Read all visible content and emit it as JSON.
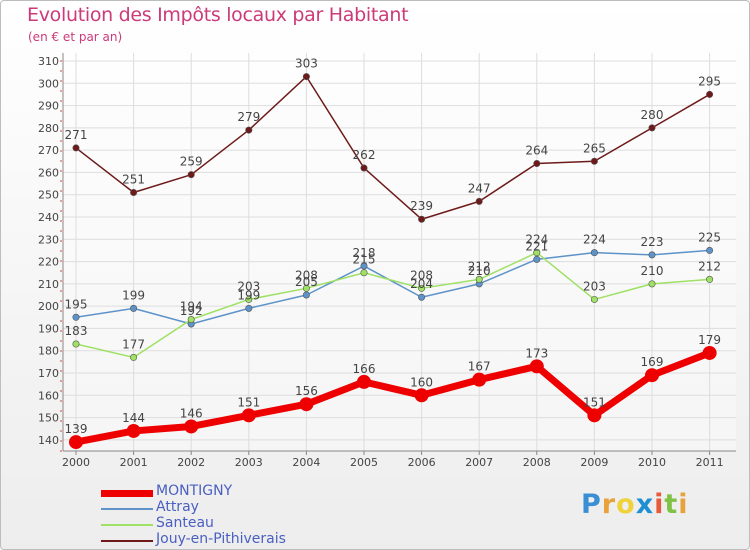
{
  "title": "Evolution des Impôts locaux par Habitant",
  "subtitle": "(en € et par an)",
  "logo": {
    "letters": [
      "P",
      "r",
      "o",
      "x",
      "i",
      "t",
      "i"
    ],
    "colors": [
      "#3a8fd4",
      "#e8a23c",
      "#f0d23c",
      "#1f8fd4",
      "#e85a3c",
      "#7fc244",
      "#e8a23c"
    ]
  },
  "chart_data": {
    "type": "line",
    "title": "Evolution des Impôts locaux par Habitant",
    "subtitle": "(en € et par an)",
    "xlabel": "",
    "ylabel": "",
    "categories": [
      "2000",
      "2001",
      "2002",
      "2003",
      "2004",
      "2005",
      "2006",
      "2007",
      "2008",
      "2009",
      "2010",
      "2011"
    ],
    "ylim": [
      135,
      310
    ],
    "yticks": [
      140,
      150,
      160,
      170,
      180,
      190,
      200,
      210,
      220,
      230,
      240,
      250,
      260,
      270,
      280,
      290,
      300,
      310
    ],
    "series": [
      {
        "name": "MONTIGNY",
        "color": "#ee0000",
        "width": 7,
        "marker": 7,
        "values": [
          139,
          144,
          146,
          151,
          156,
          166,
          160,
          167,
          173,
          151,
          169,
          179
        ],
        "labels": [
          "139",
          "144",
          "146",
          "151",
          "156",
          "166",
          "160",
          "167",
          "173",
          "151",
          "169",
          "179"
        ]
      },
      {
        "name": "Attray",
        "color": "#5d93c9",
        "width": 1.5,
        "marker": 3.2,
        "values": [
          195,
          199,
          192,
          199,
          205,
          218,
          204,
          210,
          221,
          224,
          223,
          225
        ],
        "labels": [
          "195",
          "199",
          "192",
          "199",
          "205",
          "218",
          "204",
          "210",
          "221",
          "224",
          "223",
          "225"
        ]
      },
      {
        "name": "Santeau",
        "color": "#9ee164",
        "width": 1.5,
        "marker": 3.2,
        "values": [
          183,
          177,
          194,
          203,
          208,
          215,
          208,
          212,
          224,
          203,
          210,
          212
        ],
        "labels": [
          "183",
          "177",
          "194",
          "203",
          "208",
          "215",
          "208",
          "212",
          "224",
          "203",
          "210",
          "212"
        ]
      },
      {
        "name": "Jouy-en-Pithiverais",
        "color": "#6e1a1a",
        "width": 1.5,
        "marker": 3.2,
        "values": [
          271,
          251,
          259,
          279,
          303,
          262,
          239,
          247,
          264,
          265,
          280,
          295
        ],
        "labels": [
          "271",
          "251",
          "259",
          "279",
          "303",
          "262",
          "239",
          "247",
          "264",
          "265",
          "280",
          "295"
        ]
      }
    ],
    "grid": true,
    "legend": "bottom-left"
  }
}
